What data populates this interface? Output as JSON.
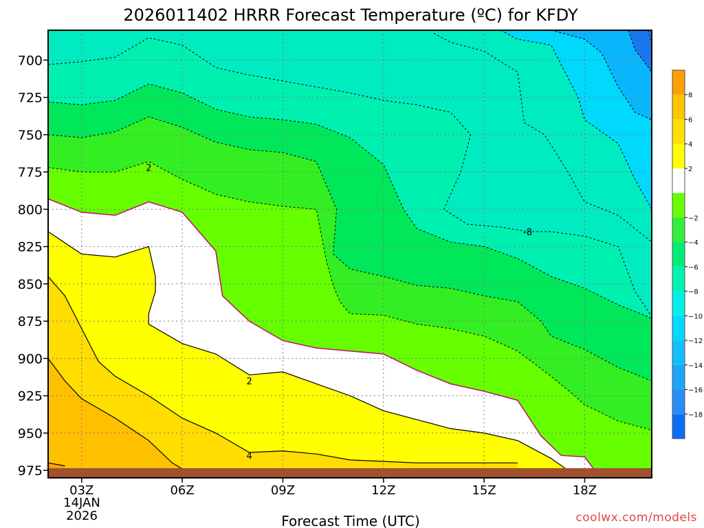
{
  "chart_data": {
    "type": "heatmap",
    "title": "2026011402 HRRR Forecast Temperature (ºC) for KFDY",
    "xlabel": "Forecast Time (UTC)",
    "credit": "coolwx.com/models",
    "x_ticks": [
      "03Z",
      "06Z",
      "09Z",
      "12Z",
      "15Z",
      "18Z"
    ],
    "x_hours": [
      3,
      6,
      9,
      12,
      15,
      18
    ],
    "x_range_hours": [
      2,
      20
    ],
    "date_label": [
      "14JAN",
      "2026"
    ],
    "y_ticks": [
      700,
      725,
      750,
      775,
      800,
      825,
      850,
      875,
      900,
      925,
      950,
      975
    ],
    "y_range_hpa": [
      680,
      980
    ],
    "grid": true,
    "colorbar": {
      "min": -20,
      "max": 10,
      "step": 2,
      "ticks": [
        8,
        6,
        4,
        2,
        -2,
        -4,
        -6,
        -8,
        -10,
        -12,
        -14,
        -16,
        -18
      ],
      "colors": {
        "-20": "#0c6ef5",
        "-18": "#2a8df7",
        "-16": "#1ea5f9",
        "-14": "#11c0fb",
        "-12": "#00d9fb",
        "-10": "#00f0e8",
        "-8": "#00f2b0",
        "-6": "#00ec7a",
        "-4": "#33ee3c",
        "-2": "#66ff00",
        "0": "#ffffff",
        "2": "#ffff00",
        "4": "#ffe000",
        "6": "#ffc400",
        "8": "#ffa000"
      }
    },
    "contour_labels": [
      {
        "value": "2",
        "hour": 5.0,
        "hpa": 772
      },
      {
        "value": "-8",
        "hour": 16.3,
        "hpa": 815
      },
      {
        "value": "2",
        "hour": 8.0,
        "hpa": 915
      },
      {
        "value": "4",
        "hour": 8.0,
        "hpa": 965
      }
    ],
    "zero_line": [
      [
        2,
        793
      ],
      [
        3,
        802
      ],
      [
        4,
        804
      ],
      [
        5,
        795
      ],
      [
        6,
        802
      ],
      [
        7,
        828
      ],
      [
        7.2,
        858
      ],
      [
        8,
        875
      ],
      [
        9,
        888
      ],
      [
        10,
        893
      ],
      [
        11,
        895
      ],
      [
        12,
        897
      ],
      [
        13,
        908
      ],
      [
        14,
        917
      ],
      [
        15,
        922
      ],
      [
        16,
        928
      ],
      [
        16.7,
        952
      ],
      [
        17.3,
        965
      ],
      [
        18,
        966
      ],
      [
        18.3,
        975
      ]
    ],
    "isotherms": [
      {
        "value": -2,
        "points": [
          [
            2,
            772
          ],
          [
            3,
            775
          ],
          [
            4,
            775
          ],
          [
            5,
            768
          ],
          [
            6,
            780
          ],
          [
            7,
            790
          ],
          [
            8,
            795
          ],
          [
            9,
            798
          ],
          [
            10,
            800
          ],
          [
            10.3,
            835
          ],
          [
            10.5,
            851
          ],
          [
            10.7,
            862
          ],
          [
            11,
            870
          ],
          [
            12,
            871
          ],
          [
            13,
            877
          ],
          [
            14,
            880
          ],
          [
            15,
            885
          ],
          [
            16,
            895
          ],
          [
            17,
            912
          ],
          [
            17.7,
            925
          ],
          [
            18,
            931
          ],
          [
            19,
            942
          ],
          [
            20,
            948
          ]
        ]
      },
      {
        "value": -4,
        "points": [
          [
            2,
            750
          ],
          [
            3,
            752
          ],
          [
            4,
            748
          ],
          [
            5,
            738
          ],
          [
            6,
            745
          ],
          [
            7,
            755
          ],
          [
            8,
            760
          ],
          [
            9,
            762
          ],
          [
            10,
            768
          ],
          [
            10.6,
            800
          ],
          [
            10.5,
            830
          ],
          [
            11,
            840
          ],
          [
            12,
            845
          ],
          [
            13,
            851
          ],
          [
            14,
            853
          ],
          [
            15,
            858
          ],
          [
            16,
            862
          ],
          [
            16.7,
            875
          ],
          [
            17,
            885
          ],
          [
            18,
            894
          ],
          [
            19,
            906
          ],
          [
            20,
            915
          ]
        ]
      },
      {
        "value": -6,
        "points": [
          [
            2,
            728
          ],
          [
            3,
            730
          ],
          [
            4,
            727
          ],
          [
            5,
            716
          ],
          [
            6,
            722
          ],
          [
            7,
            733
          ],
          [
            8,
            738
          ],
          [
            9,
            740
          ],
          [
            10,
            743
          ],
          [
            11,
            752
          ],
          [
            12,
            770
          ],
          [
            12.6,
            800
          ],
          [
            13,
            813
          ],
          [
            14,
            822
          ],
          [
            15,
            825
          ],
          [
            16,
            833
          ],
          [
            17,
            845
          ],
          [
            18,
            853
          ],
          [
            19,
            864
          ],
          [
            20,
            873
          ]
        ]
      },
      {
        "value": -8,
        "points": [
          [
            2,
            703
          ],
          [
            3,
            701
          ],
          [
            4,
            698
          ],
          [
            5,
            685
          ],
          [
            6,
            690
          ],
          [
            7,
            705
          ],
          [
            8,
            710
          ],
          [
            9,
            714
          ],
          [
            10,
            718
          ],
          [
            11,
            722
          ],
          [
            12,
            727
          ],
          [
            13,
            730
          ],
          [
            14,
            735
          ],
          [
            14.6,
            750
          ],
          [
            14.3,
            775
          ],
          [
            13.8,
            800
          ],
          [
            14.5,
            810
          ],
          [
            15.5,
            812
          ],
          [
            16.3,
            815
          ],
          [
            17,
            815
          ],
          [
            18,
            818
          ],
          [
            19,
            825
          ],
          [
            19.5,
            855
          ],
          [
            20,
            872
          ]
        ]
      },
      {
        "value": -10,
        "points": [
          [
            13.5,
            682
          ],
          [
            14,
            688
          ],
          [
            15,
            694
          ],
          [
            16,
            708
          ],
          [
            16.2,
            742
          ],
          [
            16.8,
            750
          ],
          [
            17.5,
            775
          ],
          [
            18,
            795
          ],
          [
            19,
            804
          ],
          [
            20,
            822
          ]
        ]
      },
      {
        "value": -12,
        "points": [
          [
            15.5,
            680
          ],
          [
            16,
            686
          ],
          [
            17,
            690
          ],
          [
            17.8,
            725
          ],
          [
            18,
            740
          ],
          [
            19,
            756
          ],
          [
            19.5,
            780
          ],
          [
            20,
            800
          ]
        ]
      },
      {
        "value": -14,
        "points": [
          [
            17,
            680
          ],
          [
            18,
            686
          ],
          [
            18.5,
            695
          ],
          [
            19,
            718
          ],
          [
            19.5,
            735
          ],
          [
            20,
            740
          ]
        ]
      },
      {
        "value": -16,
        "points": [
          [
            19.3,
            680
          ],
          [
            19.5,
            693
          ],
          [
            19.9,
            705
          ],
          [
            20,
            708
          ]
        ]
      },
      {
        "value": -18,
        "points": [
          [
            19.9,
            680
          ],
          [
            20,
            690
          ]
        ]
      }
    ],
    "warm_contours": [
      {
        "value": 2,
        "points": [
          [
            2,
            815
          ],
          [
            3,
            830
          ],
          [
            4,
            832
          ],
          [
            5,
            825
          ],
          [
            5.2,
            845
          ],
          [
            5.2,
            855
          ],
          [
            5,
            870
          ],
          [
            5,
            877
          ],
          [
            6,
            890
          ],
          [
            7,
            897
          ],
          [
            8,
            911
          ],
          [
            9,
            909
          ],
          [
            10,
            917
          ],
          [
            11,
            925
          ],
          [
            12,
            935
          ],
          [
            13,
            941
          ],
          [
            14,
            947
          ],
          [
            15,
            950
          ],
          [
            16,
            955
          ],
          [
            17,
            967
          ],
          [
            17.5,
            975
          ]
        ]
      },
      {
        "value": 4,
        "points": [
          [
            2,
            845
          ],
          [
            2.5,
            858
          ],
          [
            3,
            880
          ],
          [
            3.5,
            902
          ],
          [
            4,
            912
          ],
          [
            5,
            925
          ],
          [
            6,
            940
          ],
          [
            7,
            950
          ],
          [
            8,
            963
          ],
          [
            9,
            962
          ],
          [
            10,
            964
          ],
          [
            11,
            968
          ],
          [
            12,
            969
          ],
          [
            13,
            970
          ],
          [
            14,
            970
          ],
          [
            15,
            970
          ],
          [
            16,
            970
          ]
        ]
      },
      {
        "value": 6,
        "points": [
          [
            2,
            900
          ],
          [
            2.5,
            915
          ],
          [
            3,
            927
          ],
          [
            4,
            940
          ],
          [
            5,
            955
          ],
          [
            5.7,
            970
          ],
          [
            6,
            974
          ]
        ]
      },
      {
        "value": 8,
        "points": [
          [
            2,
            970
          ],
          [
            2.5,
            972
          ]
        ]
      }
    ]
  }
}
